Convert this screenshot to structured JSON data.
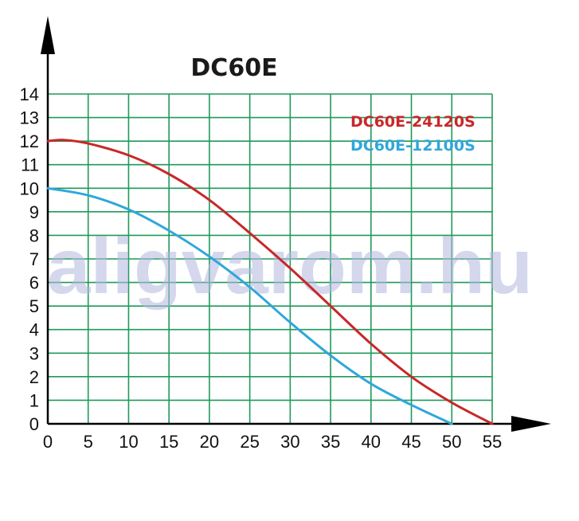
{
  "chart_data": {
    "type": "line",
    "title": "DC60E",
    "xlabel": "",
    "ylabel": "",
    "xlim": [
      0,
      55
    ],
    "ylim": [
      0,
      14
    ],
    "xticks": [
      0,
      5,
      10,
      15,
      20,
      25,
      30,
      35,
      40,
      45,
      50,
      55
    ],
    "yticks": [
      0,
      1,
      2,
      3,
      4,
      5,
      6,
      7,
      8,
      9,
      10,
      11,
      12,
      13,
      14
    ],
    "grid": true,
    "legend_position": "top-right",
    "watermark": "aligvarom.hu",
    "series": [
      {
        "name": "DC60E-24120S",
        "color": "#c8282a",
        "x": [
          0,
          2,
          5,
          10,
          15,
          20,
          25,
          30,
          35,
          40,
          45,
          50,
          55
        ],
        "y": [
          12,
          12.05,
          11.9,
          11.4,
          10.6,
          9.5,
          8.1,
          6.6,
          5.0,
          3.4,
          2.0,
          0.9,
          0
        ]
      },
      {
        "name": "DC60E-12100S",
        "color": "#2fa7db",
        "x": [
          0,
          5,
          10,
          15,
          20,
          25,
          30,
          35,
          40,
          45,
          50
        ],
        "y": [
          10,
          9.7,
          9.1,
          8.2,
          7.1,
          5.8,
          4.3,
          2.9,
          1.7,
          0.8,
          0
        ]
      }
    ]
  }
}
